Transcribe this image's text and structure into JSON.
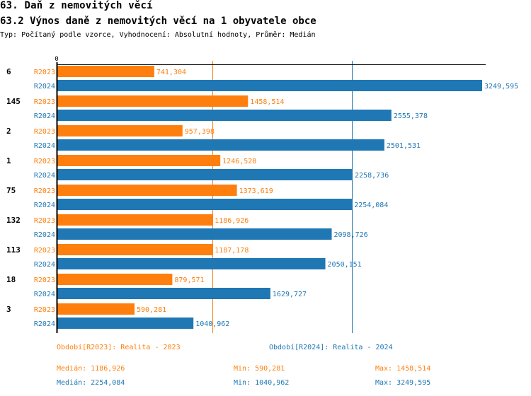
{
  "header": {
    "title": "63. Daň z nemovitých věcí",
    "subtitle": "63.2 Výnos daně z nemovitých věcí na 1 obyvatele obce",
    "description": "Typ: Počítaný podle vzorce, Vyhodnocení: Absolutní hodnoty, Průměr: Medián"
  },
  "colors": {
    "r2023": "#ff7f0e",
    "r2024": "#1f77b4"
  },
  "chart_data": {
    "type": "bar",
    "orientation": "horizontal",
    "title": "63.2 Výnos daně z nemovitých věcí na 1 obyvatele obce",
    "x_tick_labels": [
      "0"
    ],
    "xlim": [
      0,
      3249.595
    ],
    "categories": [
      "6",
      "145",
      "2",
      "1",
      "75",
      "132",
      "113",
      "18",
      "3"
    ],
    "series": [
      {
        "name": "R2023",
        "values": [
          741.304,
          1458.514,
          957.398,
          1246.528,
          1373.619,
          1186.926,
          1187.178,
          879.571,
          590.281
        ],
        "labels": [
          "741,304",
          "1458,514",
          "957,398",
          "1246,528",
          "1373,619",
          "1186,926",
          "1187,178",
          "879,571",
          "590,281"
        ]
      },
      {
        "name": "R2024",
        "values": [
          3249.595,
          2555.378,
          2501.531,
          2258.736,
          2254.084,
          2098.726,
          2050.151,
          1629.727,
          1040.962
        ],
        "labels": [
          "3249,595",
          "2555,378",
          "2501,531",
          "2258,736",
          "2254,084",
          "2098,726",
          "2050,151",
          "1629,727",
          "1040,962"
        ]
      }
    ],
    "median_lines": [
      {
        "series": "R2023",
        "value": 1186.926
      },
      {
        "series": "R2024",
        "value": 2254.084
      }
    ],
    "legend": "bottom"
  },
  "legend": {
    "r2023": "Období[R2023]: Realita - 2023",
    "r2024": "Období[R2024]: Realita - 2024"
  },
  "stats": {
    "r2023": {
      "median": "Medián: 1186,926",
      "min": "Min: 590,281",
      "max": "Max: 1458,514"
    },
    "r2024": {
      "median": "Medián: 2254,084",
      "min": "Min: 1040,962",
      "max": "Max: 3249,595"
    }
  }
}
